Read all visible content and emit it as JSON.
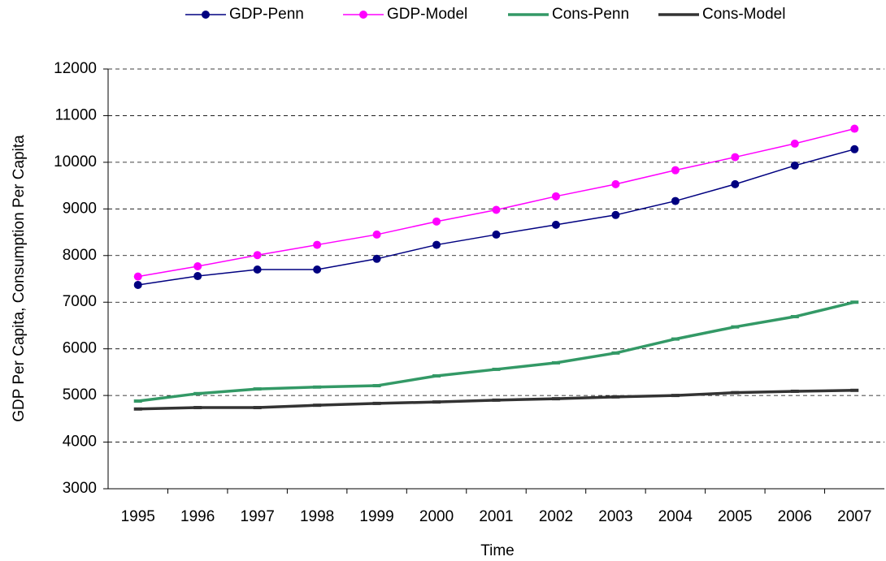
{
  "chart_data": {
    "type": "line",
    "y_label": "GDP Per Capita, Consumption Per Capita",
    "x_label": "Time",
    "categories": [
      "1995",
      "1996",
      "1997",
      "1998",
      "1999",
      "2000",
      "2001",
      "2002",
      "2003",
      "2004",
      "2005",
      "2006",
      "2007"
    ],
    "series": [
      {
        "name": "GDP-Penn",
        "color": "#000080",
        "marker": "circle",
        "values": [
          7370,
          7560,
          7700,
          7700,
          7930,
          8230,
          8450,
          8660,
          8870,
          9170,
          9530,
          9930,
          10280
        ]
      },
      {
        "name": "GDP-Model",
        "color": "#ff00ff",
        "marker": "circle",
        "values": [
          7550,
          7770,
          8010,
          8230,
          8450,
          8730,
          8980,
          9270,
          9530,
          9830,
          10110,
          10400,
          10720
        ]
      },
      {
        "name": "Cons-Penn",
        "color": "#339966",
        "marker": "dash",
        "values": [
          4880,
          5040,
          5140,
          5180,
          5210,
          5420,
          5560,
          5700,
          5910,
          6210,
          6470,
          6690,
          7000
        ]
      },
      {
        "name": "Cons-Model",
        "color": "#333333",
        "marker": "dash",
        "values": [
          4710,
          4740,
          4740,
          4790,
          4830,
          4860,
          4900,
          4930,
          4970,
          5000,
          5060,
          5090,
          5110
        ]
      }
    ],
    "ylim": [
      3000,
      12000
    ],
    "yticks": [
      3000,
      4000,
      5000,
      6000,
      7000,
      8000,
      9000,
      10000,
      11000,
      12000
    ],
    "grid": true,
    "legend": "top"
  }
}
